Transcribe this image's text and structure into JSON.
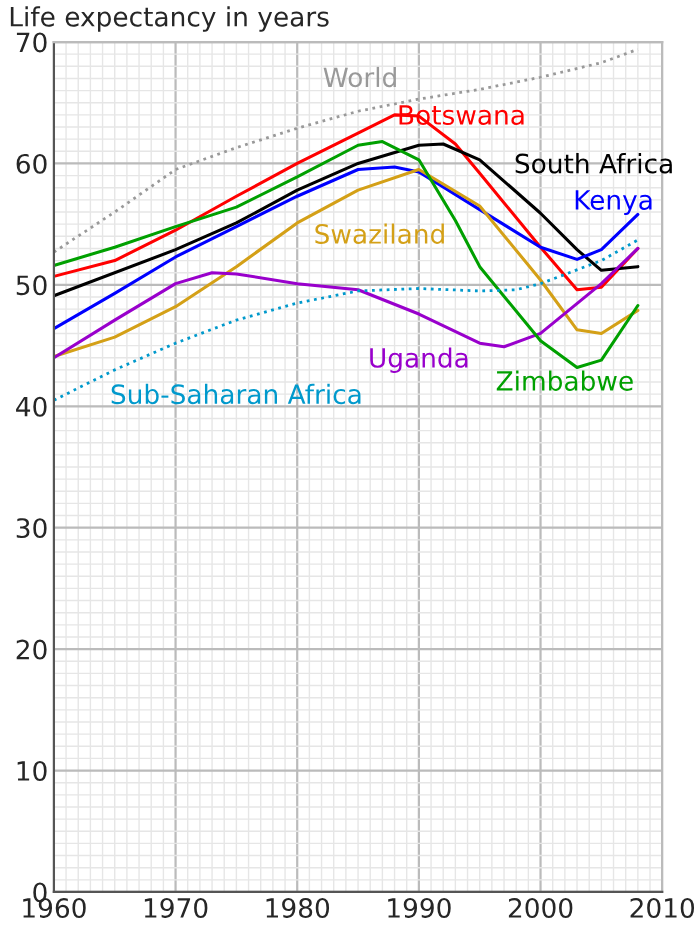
{
  "chart_data": {
    "type": "line",
    "ylabel": "Life expectancy in years",
    "xlim": [
      1960,
      2010
    ],
    "xticks": [
      1960,
      1970,
      1980,
      1990,
      2000,
      2010
    ],
    "ylim": [
      0,
      70
    ],
    "yticks": [
      0,
      10,
      20,
      30,
      40,
      50,
      60,
      70
    ],
    "grid": true,
    "legend": false,
    "series": [
      {
        "name": "World",
        "color": "#999999",
        "line_style": "dotted",
        "x": [
          1960,
          1965,
          1970,
          1975,
          1980,
          1985,
          1990,
          1995,
          2000,
          2005,
          2008
        ],
        "values": [
          52.7,
          56,
          59.5,
          61.3,
          62.9,
          64.3,
          65.3,
          66.1,
          67.1,
          68.3,
          69.4
        ]
      },
      {
        "name": "Botswana",
        "color": "#ff0000",
        "x": [
          1960,
          1965,
          1970,
          1975,
          1980,
          1985,
          1988,
          1990,
          1993,
          1995,
          2000,
          2003,
          2005,
          2008
        ],
        "values": [
          50.7,
          52.0,
          54.5,
          57.3,
          60,
          62.5,
          64,
          63.9,
          61.6,
          59.2,
          53.1,
          49.6,
          49.8,
          53.0
        ]
      },
      {
        "name": "South Africa",
        "color": "#000000",
        "x": [
          1960,
          1970,
          1975,
          1980,
          1985,
          1990,
          1992,
          1995,
          2000,
          2003,
          2005,
          2008
        ],
        "values": [
          49.1,
          52.9,
          55.1,
          57.8,
          60,
          61.5,
          61.6,
          60.3,
          55.9,
          52.9,
          51.2,
          51.5
        ]
      },
      {
        "name": "Kenya",
        "color": "#0000ff",
        "x": [
          1960,
          1965,
          1970,
          1975,
          1980,
          1985,
          1988,
          1990,
          1995,
          2000,
          2003,
          2005,
          2008
        ],
        "values": [
          46.4,
          49.3,
          52.3,
          54.8,
          57.3,
          59.5,
          59.7,
          59.3,
          56.2,
          53.1,
          52.1,
          52.9,
          55.8
        ]
      },
      {
        "name": "Swaziland",
        "color": "#d4a017",
        "x": [
          1960,
          1965,
          1970,
          1975,
          1980,
          1985,
          1990,
          1995,
          2000,
          2003,
          2005,
          2008
        ],
        "values": [
          44.1,
          45.7,
          48.2,
          51.5,
          55.1,
          57.8,
          59.5,
          56.5,
          50.4,
          46.3,
          46.0,
          47.9
        ]
      },
      {
        "name": "Uganda",
        "color": "#9900cc",
        "x": [
          1960,
          1965,
          1970,
          1973,
          1975,
          1980,
          1985,
          1990,
          1995,
          1997,
          2000,
          2005,
          2008
        ],
        "values": [
          44.0,
          47.1,
          50.1,
          51.0,
          50.9,
          50.1,
          49.6,
          47.6,
          45.2,
          44.9,
          46.0,
          50.1,
          53.0
        ]
      },
      {
        "name": "Zimbabwe",
        "color": "#00a000",
        "x": [
          1960,
          1965,
          1970,
          1975,
          1980,
          1985,
          1987,
          1990,
          1993,
          1995,
          2000,
          2003,
          2005,
          2008
        ],
        "values": [
          51.6,
          53.1,
          54.8,
          56.4,
          58.9,
          61.5,
          61.8,
          60.3,
          55.3,
          51.5,
          45.4,
          43.2,
          43.8,
          48.3
        ]
      },
      {
        "name": "Sub-Saharan Africa",
        "color": "#0099cc",
        "line_style": "dotted",
        "x": [
          1960,
          1965,
          1970,
          1975,
          1980,
          1985,
          1990,
          1995,
          1998,
          2000,
          2005,
          2008
        ],
        "values": [
          40.5,
          43,
          45.2,
          47.1,
          48.5,
          49.5,
          49.7,
          49.5,
          49.6,
          50.1,
          52,
          53.7
        ]
      }
    ]
  }
}
